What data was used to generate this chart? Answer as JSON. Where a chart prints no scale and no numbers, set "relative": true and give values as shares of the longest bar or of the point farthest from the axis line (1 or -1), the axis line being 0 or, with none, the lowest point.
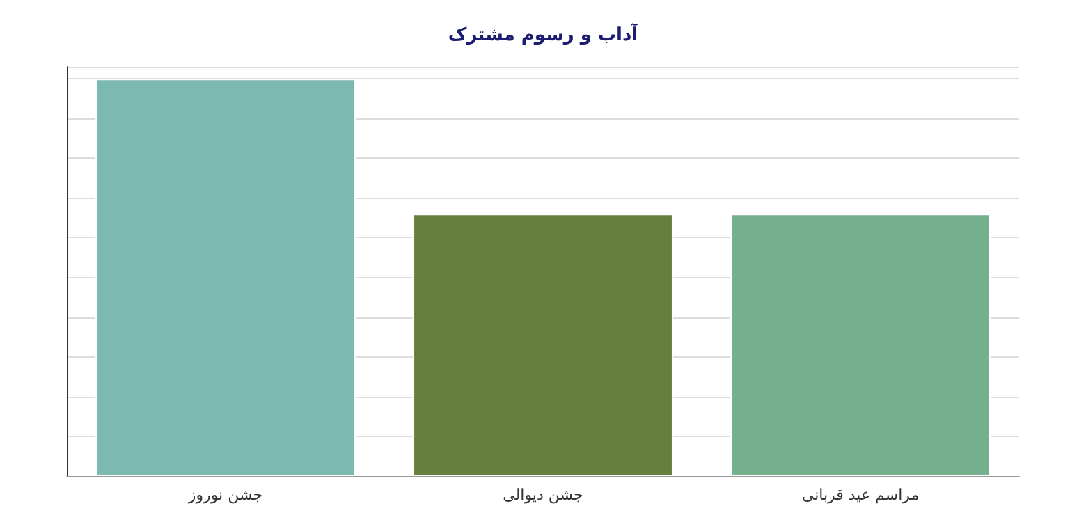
{
  "chart_data": {
    "type": "bar",
    "title": "آداب و رسوم مشترک",
    "relative": true,
    "grid": "y",
    "categories": [
      "جشن نوروز",
      "جشن دیوالی",
      "مراسم عید قربانی"
    ],
    "values": [
      1,
      0.66,
      0.66
    ],
    "colors": [
      "#7cb9b1",
      "#667f3e",
      "#74b08c"
    ]
  }
}
